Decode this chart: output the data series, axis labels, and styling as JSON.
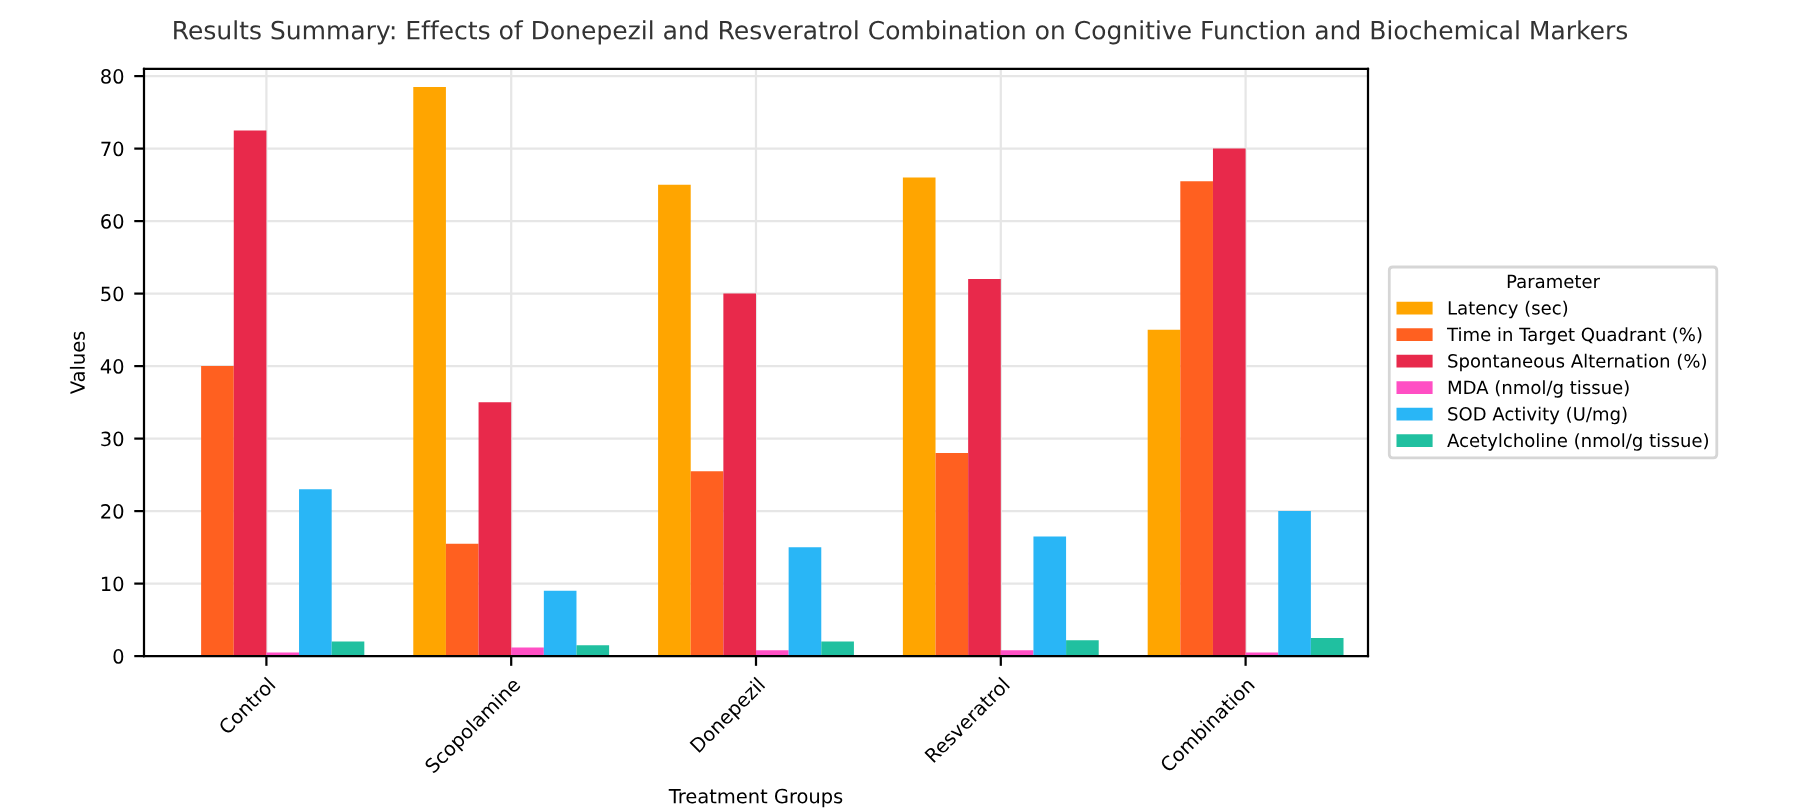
{
  "chart_data": {
    "type": "bar",
    "title": "Results Summary: Effects of Donepezil and Resveratrol Combination on Cognitive Function and Biochemical Markers",
    "xlabel": "Treatment Groups",
    "ylabel": "Values",
    "legend_title": "Parameter",
    "categories": [
      "Control",
      "Scopolamine",
      "Donepezil",
      "Resveratrol",
      "Combination"
    ],
    "series": [
      {
        "name": "Latency (sec)",
        "color": "#ffa500",
        "values": [
          null,
          78.5,
          65,
          66,
          45
        ]
      },
      {
        "name": "Time in Target Quadrant (%)",
        "color": "#ff6020",
        "values": [
          40,
          15.5,
          25.5,
          28,
          65.5
        ]
      },
      {
        "name": "Spontaneous Alternation (%)",
        "color": "#e8294b",
        "values": [
          72.5,
          35,
          50,
          52,
          70
        ]
      },
      {
        "name": "MDA (nmol/g tissue)",
        "color": "#ff4fc4",
        "values": [
          0.5,
          1.2,
          0.8,
          0.8,
          0.5
        ]
      },
      {
        "name": "SOD Activity (U/mg)",
        "color": "#29b6f6",
        "values": [
          23,
          9,
          15,
          16.5,
          20
        ]
      },
      {
        "name": "Acetylcholine (nmol/g tissue)",
        "color": "#20c0a0",
        "values": [
          2,
          1.5,
          2,
          2.2,
          2.5
        ]
      }
    ],
    "ylim": [
      0,
      81
    ],
    "yticks": [
      0,
      10,
      20,
      30,
      40,
      50,
      60,
      70,
      80
    ],
    "grid": true,
    "legend": "right"
  }
}
